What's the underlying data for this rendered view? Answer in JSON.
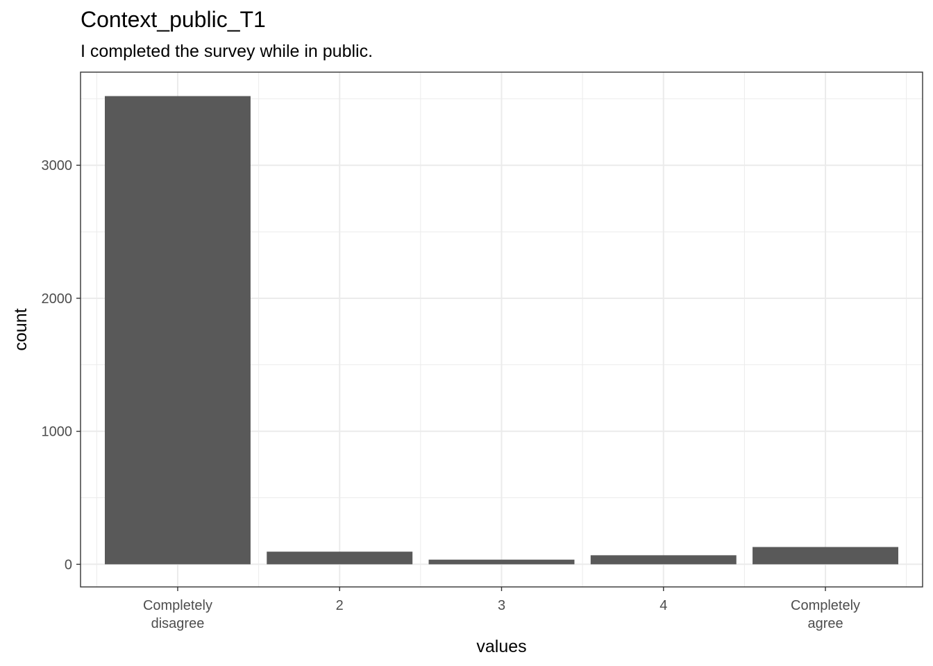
{
  "title": "Context_public_T1",
  "subtitle": "I completed the survey while in public.",
  "chart_data": {
    "type": "bar",
    "title": "Context_public_T1",
    "subtitle": "I completed the survey while in public.",
    "xlabel": "values",
    "ylabel": "count",
    "categories": [
      [
        "Completely",
        "disagree"
      ],
      [
        "2"
      ],
      [
        "3"
      ],
      [
        "4"
      ],
      [
        "Completely",
        "agree"
      ]
    ],
    "values": [
      3520,
      95,
      35,
      68,
      130
    ],
    "ylim": [
      -170,
      3700
    ],
    "yticks": [
      0,
      1000,
      2000,
      3000
    ],
    "grid": true,
    "bar_color": "#595959",
    "grid_color": "#ebebeb",
    "panel_border_color": "#333333"
  }
}
